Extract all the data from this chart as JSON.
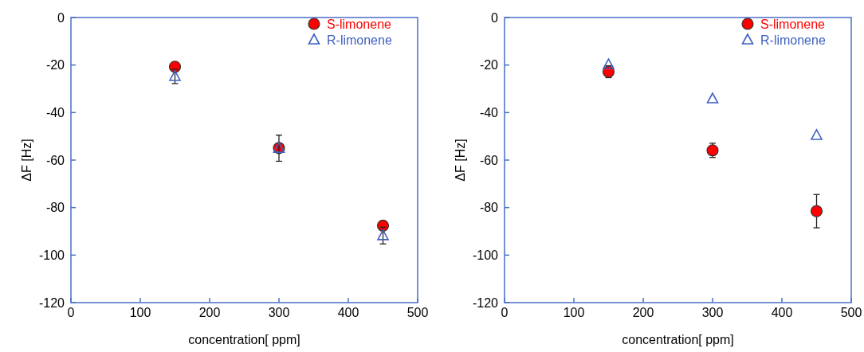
{
  "chart_data": [
    {
      "type": "scatter",
      "xlabel": "concentration[ ppm]",
      "ylabel": "ΔF [Hz]",
      "x": [
        150,
        300,
        450
      ],
      "xlim": [
        0,
        500
      ],
      "xticks": [
        0,
        100,
        200,
        300,
        400,
        500
      ],
      "ylim": [
        -120,
        0
      ],
      "yticks": [
        -120,
        -100,
        -80,
        -60,
        -40,
        -20,
        0
      ],
      "legend": "top right",
      "grid": false,
      "series": [
        {
          "name": "S-limonene",
          "color": "#ff0000",
          "marker": "circle",
          "values": [
            -20.7,
            -54.9,
            -87.6
          ],
          "errors": [
            1,
            null,
            null
          ]
        },
        {
          "name": "R-limonene",
          "color": "#3f5fbf",
          "marker": "triangle",
          "values": [
            -24.8,
            -55,
            -91.8
          ],
          "errors": [
            3,
            5.5,
            3.5
          ]
        }
      ]
    },
    {
      "type": "scatter",
      "xlabel": "concentration[ ppm]",
      "ylabel": "ΔF [Hz]",
      "x": [
        150,
        300,
        450
      ],
      "xlim": [
        0,
        500
      ],
      "xticks": [
        0,
        100,
        200,
        300,
        400,
        500
      ],
      "ylim": [
        -120,
        0
      ],
      "yticks": [
        -120,
        -100,
        -80,
        -60,
        -40,
        -20,
        0
      ],
      "legend": "top right",
      "grid": false,
      "series": [
        {
          "name": "S-limonene",
          "color": "#ff0000",
          "marker": "circle",
          "values": [
            -22.8,
            -55.9,
            -81.5
          ],
          "errors": [
            2.5,
            3,
            7
          ]
        },
        {
          "name": "R-limonene",
          "color": "#3f5fbf",
          "marker": "triangle",
          "values": [
            -19.8,
            -34.2,
            -49.6
          ]
        }
      ]
    }
  ]
}
